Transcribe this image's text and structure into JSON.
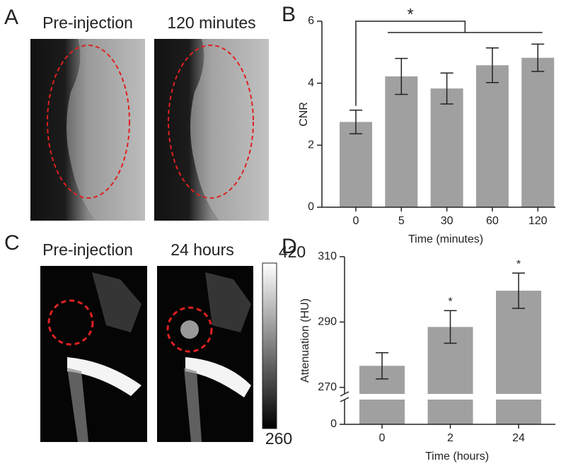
{
  "panels": {
    "a": "A",
    "b": "B",
    "c": "C",
    "d": "D"
  },
  "images": {
    "a_left": "Pre-injection",
    "a_right": "120 minutes",
    "c_left": "Pre-injection",
    "c_right": "24 hours"
  },
  "colorbar": {
    "max": 420,
    "min": 260
  },
  "chart_data": [
    {
      "type": "bar",
      "ylabel": "CNR",
      "xlabel": "Time (minutes)",
      "categories": [
        "0",
        "5",
        "30",
        "60",
        "120"
      ],
      "values": [
        2.75,
        4.22,
        3.83,
        4.58,
        4.82
      ],
      "errors": [
        0.38,
        0.58,
        0.5,
        0.56,
        0.44
      ],
      "color": "#a0a0a0",
      "ylim": [
        0,
        6
      ],
      "yticks": [
        0,
        2,
        4,
        6
      ],
      "annotation": "*"
    },
    {
      "type": "bar",
      "ylabel": "Attenuation (HU)",
      "xlabel": "Time (hours)",
      "categories": [
        "0",
        "2",
        "24"
      ],
      "values": [
        276.6,
        288.5,
        299.6
      ],
      "errors": [
        4,
        5,
        5.4
      ],
      "markers": [
        null,
        "*",
        "*"
      ],
      "color": "#a0a0a0",
      "ylim": [
        0,
        310
      ],
      "ybreak": [
        7,
        268
      ],
      "yticks": [
        0,
        270,
        290,
        310
      ]
    }
  ]
}
